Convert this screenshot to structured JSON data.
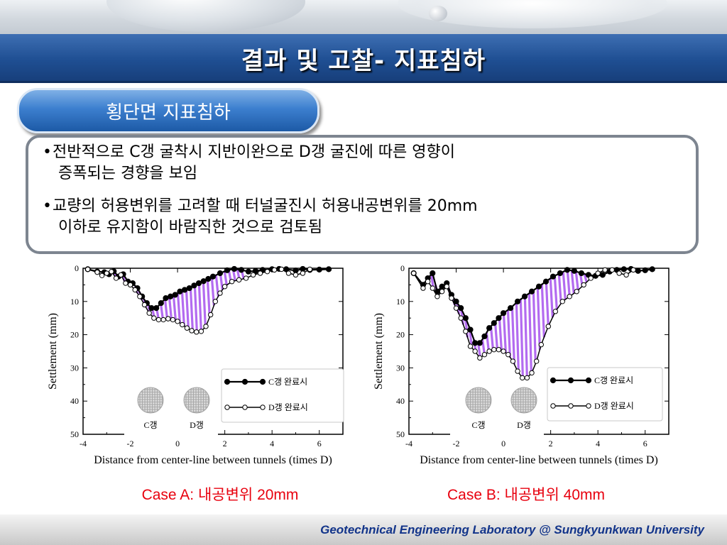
{
  "slide": {
    "title": "결과 및 고찰- 지표침하",
    "subtitle": "횡단면 지표침하",
    "bullets": [
      {
        "line1": "전반적으로 C갱 굴착시 지반이완으로 D갱 굴진에 따른 영향이",
        "line2": "증폭되는 경향을 보임"
      },
      {
        "line1": "교량의 허용변위를 고려할 때 터널굴진시 허용내공변위를 20mm",
        "line2": "이하로 유지함이 바람직한 것으로 검토됨"
      }
    ],
    "captions": [
      "Case A: 내공변위 20mm",
      "Case B: 내공변위 40mm"
    ],
    "footer": "Geotechnical Engineering Laboratory @ Sungkyunkwan University",
    "colors": {
      "title_bar": "#1f4f93",
      "subtitle_pill": "#3c7fcf",
      "hatch": "#b36bf0",
      "caption": "#e8000e",
      "footer_text": "#12348a"
    }
  },
  "chart_data": [
    {
      "type": "line",
      "xlabel": "Distance from center-line between tunnels (times D)",
      "ylabel": "Settlement (mm)",
      "xlim": [
        -4,
        7
      ],
      "ylim": [
        0,
        50
      ],
      "y_inverted": true,
      "x_ticks": [
        -4,
        -2,
        0,
        2,
        4,
        6
      ],
      "y_ticks": [
        0,
        10,
        20,
        30,
        40,
        50
      ],
      "tunnel_labels": [
        "C갱",
        "D갱"
      ],
      "between_series_fill": "#b36bf0",
      "series": [
        {
          "name": "C갱 완료시",
          "marker": "filled",
          "x": [
            -3.8,
            -3.4,
            -3.1,
            -2.9,
            -2.7,
            -2.5,
            -2.3,
            -2.1,
            -1.9,
            -1.7,
            -1.5,
            -1.3,
            -1.1,
            -0.9,
            -0.7,
            -0.5,
            -0.3,
            -0.1,
            0.1,
            0.3,
            0.5,
            0.7,
            0.9,
            1.1,
            1.3,
            1.5,
            1.8,
            2.1,
            2.4,
            2.7,
            3.0,
            3.3,
            3.6,
            4.0,
            4.3,
            4.6,
            5.0,
            5.3,
            5.6,
            6.0,
            6.4
          ],
          "y": [
            0.3,
            1.0,
            1.2,
            1.8,
            0.9,
            2.5,
            1.8,
            4.0,
            4.5,
            6.0,
            8.5,
            10.5,
            12.0,
            12.0,
            10.5,
            9.0,
            8.5,
            8.0,
            7.0,
            6.5,
            6.0,
            5.2,
            4.5,
            3.9,
            3.2,
            2.5,
            1.5,
            0.6,
            0.2,
            0.5,
            1.0,
            0.8,
            0.5,
            0.3,
            0.2,
            0.3,
            0.7,
            0.2,
            0.5,
            0.4,
            0.3
          ]
        },
        {
          "name": "D갱 완료시",
          "marker": "open",
          "x": [
            -3.8,
            -3.4,
            -3.2,
            -3.0,
            -2.8,
            -2.6,
            -2.4,
            -2.2,
            -2.0,
            -1.8,
            -1.6,
            -1.4,
            -1.2,
            -1.0,
            -0.8,
            -0.6,
            -0.4,
            -0.2,
            0.0,
            0.2,
            0.4,
            0.6,
            0.8,
            1.0,
            1.2,
            1.4,
            1.6,
            1.8,
            2.0,
            2.3,
            2.6,
            2.9,
            3.2,
            3.5,
            3.8,
            4.1,
            4.4,
            4.7,
            5.0,
            5.3,
            5.6
          ],
          "y": [
            0.3,
            1.2,
            2.2,
            1.5,
            1.0,
            3.0,
            2.0,
            4.5,
            5.0,
            6.5,
            8.5,
            11.0,
            13.5,
            15.0,
            15.5,
            15.5,
            15.2,
            15.5,
            16.0,
            17.0,
            18.0,
            18.8,
            19.2,
            19.0,
            17.5,
            14.0,
            10.0,
            7.5,
            5.5,
            4.0,
            3.5,
            3.0,
            2.0,
            1.5,
            1.0,
            0.5,
            0.3,
            1.5,
            2.0,
            1.5,
            0.3
          ]
        }
      ]
    },
    {
      "type": "line",
      "xlabel": "Distance from center-line between tunnels (times D)",
      "ylabel": "Settlement (mm)",
      "xlim": [
        -4,
        7
      ],
      "ylim": [
        0,
        50
      ],
      "y_inverted": true,
      "x_ticks": [
        -4,
        -2,
        0,
        2,
        4,
        6
      ],
      "y_ticks": [
        0,
        10,
        20,
        30,
        40,
        50
      ],
      "tunnel_labels": [
        "C갱",
        "D갱"
      ],
      "between_series_fill": "#b36bf0",
      "series": [
        {
          "name": "C갱 완료시",
          "marker": "filled",
          "x": [
            -3.8,
            -3.4,
            -3.2,
            -3.0,
            -2.8,
            -2.6,
            -2.4,
            -2.2,
            -2.0,
            -1.8,
            -1.6,
            -1.4,
            -1.2,
            -1.0,
            -0.8,
            -0.6,
            -0.4,
            -0.2,
            0.0,
            0.3,
            0.6,
            0.9,
            1.2,
            1.5,
            1.8,
            2.1,
            2.4,
            2.7,
            3.0,
            3.3,
            3.6,
            3.9,
            4.2,
            4.5,
            4.8,
            5.1,
            5.4,
            5.7,
            6.0,
            6.3
          ],
          "y": [
            1.5,
            5.0,
            3.0,
            1.5,
            7.0,
            5.5,
            4.5,
            8.0,
            10.0,
            12.0,
            15.0,
            18.5,
            22.5,
            22.5,
            20.5,
            18.0,
            16.5,
            15.0,
            13.5,
            12.0,
            10.0,
            8.5,
            7.0,
            5.5,
            4.0,
            2.5,
            1.5,
            0.5,
            0.8,
            1.5,
            2.0,
            2.3,
            2.0,
            1.0,
            0.5,
            0.3,
            0.2,
            0.8,
            0.6,
            0.3
          ]
        },
        {
          "name": "D갱 완료시",
          "marker": "open",
          "x": [
            -3.8,
            -3.4,
            -3.2,
            -3.0,
            -2.8,
            -2.6,
            -2.4,
            -2.2,
            -2.0,
            -1.8,
            -1.6,
            -1.4,
            -1.2,
            -1.0,
            -0.8,
            -0.6,
            -0.4,
            -0.2,
            0.0,
            0.2,
            0.4,
            0.6,
            0.8,
            1.0,
            1.2,
            1.4,
            1.6,
            1.9,
            2.2,
            2.5,
            2.8,
            3.1,
            3.4,
            3.7,
            4.0,
            4.3,
            4.6,
            4.9,
            5.2,
            5.5
          ],
          "y": [
            1.5,
            6.0,
            4.0,
            6.0,
            8.5,
            7.0,
            5.5,
            9.0,
            12.0,
            15.0,
            19.0,
            23.5,
            25.0,
            27.0,
            26.0,
            25.0,
            24.5,
            24.5,
            25.0,
            26.0,
            28.0,
            31.0,
            33.0,
            33.0,
            31.5,
            28.0,
            23.0,
            17.5,
            13.0,
            10.0,
            8.5,
            7.0,
            5.0,
            3.0,
            1.5,
            0.5,
            0.5,
            1.5,
            2.0,
            0.5
          ]
        }
      ]
    }
  ]
}
